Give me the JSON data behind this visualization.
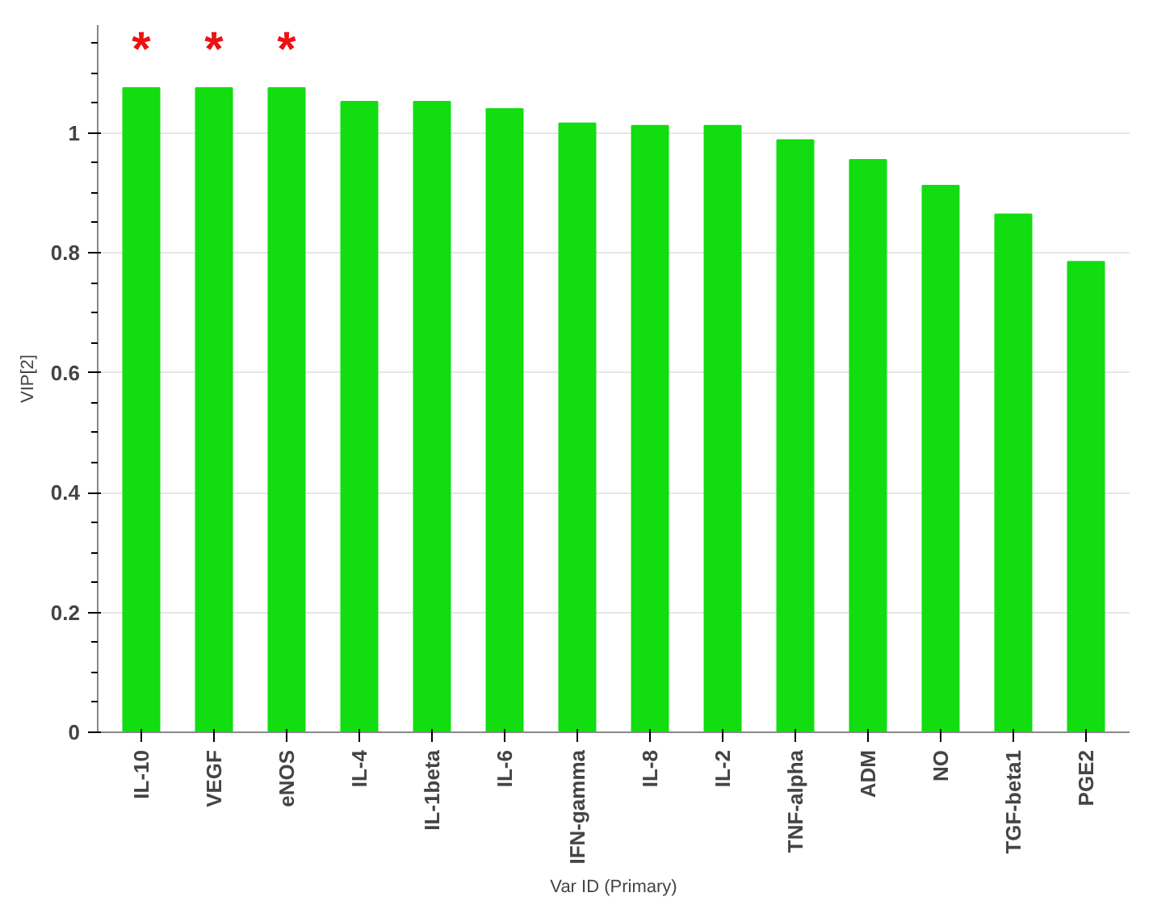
{
  "chart_data": {
    "type": "bar",
    "xlabel": "Var ID (Primary)",
    "ylabel": "VIP[2]",
    "categories": [
      "IL-10",
      "VEGF",
      "eNOS",
      "IL-4",
      "IL-1beta",
      "IL-6",
      "IFN-gamma",
      "IL-8",
      "IL-2",
      "TNF-alpha",
      "ADM",
      "NO",
      "TGF-beta1",
      "PGE2"
    ],
    "values": [
      1.075,
      1.075,
      1.075,
      1.052,
      1.052,
      1.04,
      1.016,
      1.012,
      1.012,
      0.988,
      0.955,
      0.912,
      0.864,
      0.785
    ],
    "color": "#11dd11",
    "ylim": [
      0,
      1.18
    ],
    "yticks": [
      0,
      0.2,
      0.4,
      0.6,
      0.8,
      1
    ],
    "grid": "y",
    "annotations": [
      "*",
      "*",
      "*"
    ]
  }
}
